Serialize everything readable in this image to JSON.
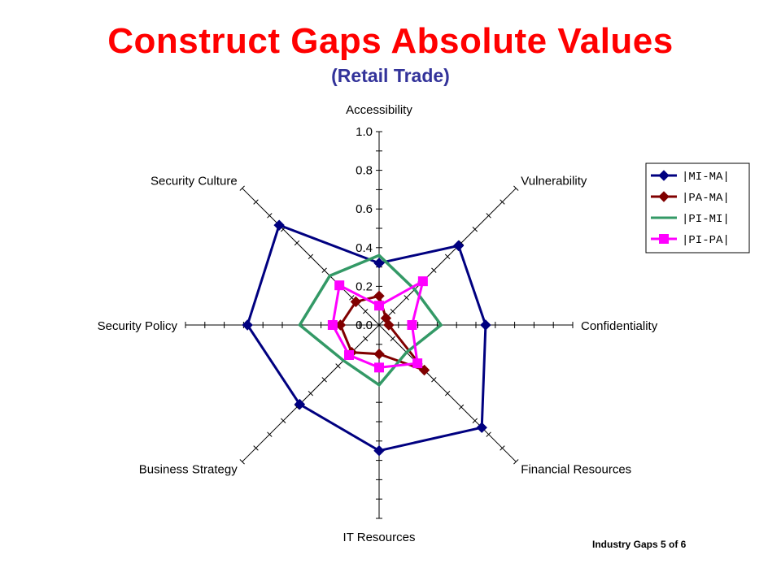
{
  "slide": {
    "title": "Construct Gaps Absolute Values",
    "subtitle": "(Retail Trade)",
    "footer": "Industry Gaps 5 of 6"
  },
  "chart_data": {
    "type": "radar",
    "categories": [
      "Accessibility",
      "Vulnerability",
      "Confidentiality",
      "Financial Resources",
      "IT Resources",
      "Business Strategy",
      "Security Policy",
      "Security Culture"
    ],
    "rlim": [
      0,
      1.0
    ],
    "ticks": [
      "0.0",
      "0.2",
      "0.4",
      "0.6",
      "0.8",
      "1.0"
    ],
    "legend_position": "right",
    "series": [
      {
        "name": "|MI-MA|",
        "color": "#000080",
        "marker": "diamond",
        "values": [
          0.32,
          0.58,
          0.55,
          0.75,
          0.65,
          0.58,
          0.68,
          0.73
        ]
      },
      {
        "name": "|PA-MA|",
        "color": "#800000",
        "marker": "diamond",
        "values": [
          0.15,
          0.05,
          0.05,
          0.33,
          0.15,
          0.2,
          0.2,
          0.17
        ]
      },
      {
        "name": "|PI-MI|",
        "color": "#339966",
        "marker": "none",
        "values": [
          0.36,
          0.26,
          0.32,
          0.2,
          0.31,
          0.26,
          0.41,
          0.36
        ]
      },
      {
        "name": "|PI-PA|",
        "color": "#ff00ff",
        "marker": "square",
        "values": [
          0.1,
          0.32,
          0.17,
          0.28,
          0.22,
          0.22,
          0.24,
          0.29
        ]
      }
    ]
  }
}
